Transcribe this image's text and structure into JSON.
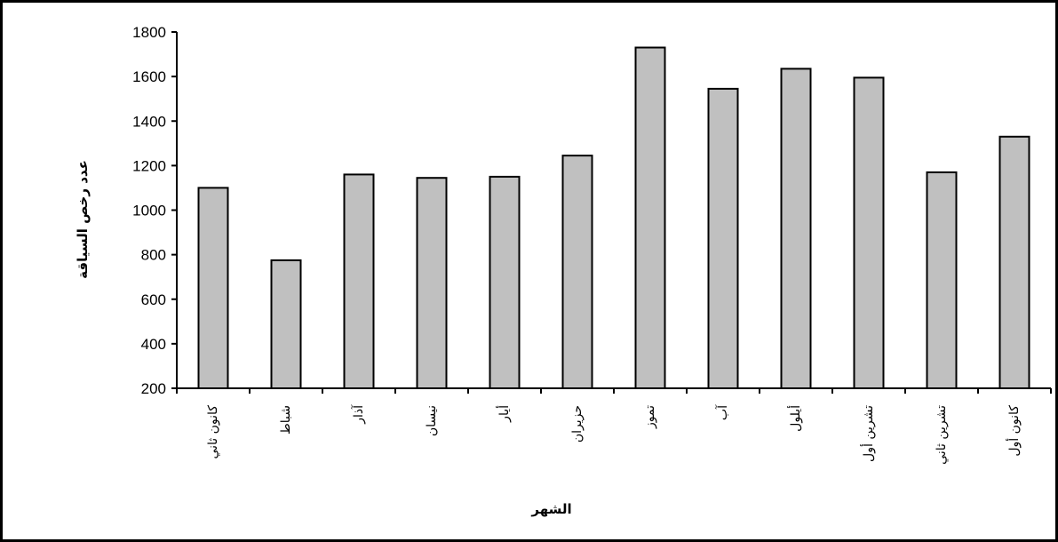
{
  "chart_data": {
    "type": "bar",
    "title": "",
    "xlabel": "الشهر",
    "ylabel": "عدد رخص السياقة",
    "categories": [
      "كانون ثاني",
      "شباط",
      "آذار",
      "نيسان",
      "أيار",
      "حزيران",
      "تموز",
      "آب",
      "أيلول",
      "تشرين أول",
      "تشرين ثاني",
      "كانون أول"
    ],
    "values": [
      1100,
      775,
      1160,
      1145,
      1150,
      1245,
      1730,
      1545,
      1635,
      1595,
      1170,
      1330
    ],
    "ylim": [
      200,
      1800
    ],
    "yticks": [
      200,
      400,
      600,
      800,
      1000,
      1200,
      1400,
      1600,
      1800
    ],
    "grid": false,
    "legend": "none",
    "bar_color": "#c0c0c0",
    "bar_edge_color": "#000000"
  }
}
